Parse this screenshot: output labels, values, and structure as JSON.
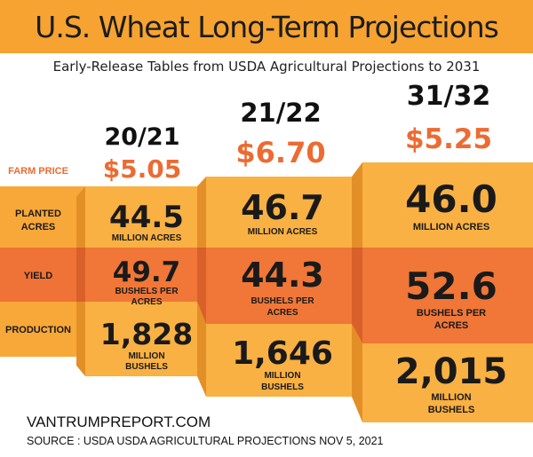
{
  "header": {
    "title": "U.S. Wheat Long-Term Projections",
    "subtitle": "Early-Release Tables from USDA Agricultural Projections to 2031"
  },
  "colors": {
    "title_bar": "#f6a331",
    "orange_band": "#ef7236",
    "light_orange": "#f8a838",
    "price_text": "#ec6b32"
  },
  "row_labels": {
    "farm_price": "FARM PRICE",
    "planted_acres": [
      "PLANTED",
      "ACRES"
    ],
    "yield": "YIELD",
    "production": "PRODUCTION"
  },
  "chart_data": {
    "type": "table",
    "title": "U.S. Wheat Long-Term Projections",
    "subtitle": "Early-Release Tables from USDA Agricultural Projections to 2031",
    "columns": [
      "20/21",
      "21/22",
      "31/32"
    ],
    "rows": [
      {
        "name": "FARM PRICE",
        "values": [
          "$5.05",
          "$6.70",
          "$5.25"
        ],
        "numeric": [
          5.05,
          6.7,
          5.25
        ]
      },
      {
        "name": "PLANTED ACRES",
        "values": [
          "44.5",
          "46.7",
          "46.0"
        ],
        "numeric": [
          44.5,
          46.7,
          46.0
        ],
        "unit": "MILLION ACRES"
      },
      {
        "name": "YIELD",
        "values": [
          "49.7",
          "44.3",
          "52.6"
        ],
        "numeric": [
          49.7,
          44.3,
          52.6
        ],
        "unit": "BUSHELS PER ACRES"
      },
      {
        "name": "PRODUCTION",
        "values": [
          "1,828",
          "1,646",
          "2,015"
        ],
        "numeric": [
          1828,
          1646,
          2015
        ],
        "unit": "MILLION BUSHELS"
      }
    ],
    "cells": [
      {
        "year": "20/21",
        "price": "$5.05",
        "acres": "44.5",
        "acres_unit": "MILLION ACRES",
        "yield": "49.7",
        "yield_unit": [
          "BUSHELS PER",
          "ACRES"
        ],
        "production": "1,828",
        "production_unit": [
          "MILLION",
          "BUSHELS"
        ]
      },
      {
        "year": "21/22",
        "price": "$6.70",
        "acres": "46.7",
        "acres_unit": "MILLION ACRES",
        "yield": "44.3",
        "yield_unit": [
          "BUSHELS PER",
          "ACRES"
        ],
        "production": "1,646",
        "production_unit": [
          "MILLION",
          "BUSHELS"
        ]
      },
      {
        "year": "31/32",
        "price": "$5.25",
        "acres": "46.0",
        "acres_unit": "MILLION ACRES",
        "yield": "52.6",
        "yield_unit": [
          "BUSHELS PER",
          "ACRES"
        ],
        "production": "2,015",
        "production_unit": [
          "MILLION",
          "BUSHELS"
        ]
      }
    ]
  },
  "footer": {
    "website": "VANTRUMPREPORT.COM",
    "source": "SOURCE : USDA USDA AGRICULTURAL PROJECTIONS NOV 5, 2021"
  }
}
